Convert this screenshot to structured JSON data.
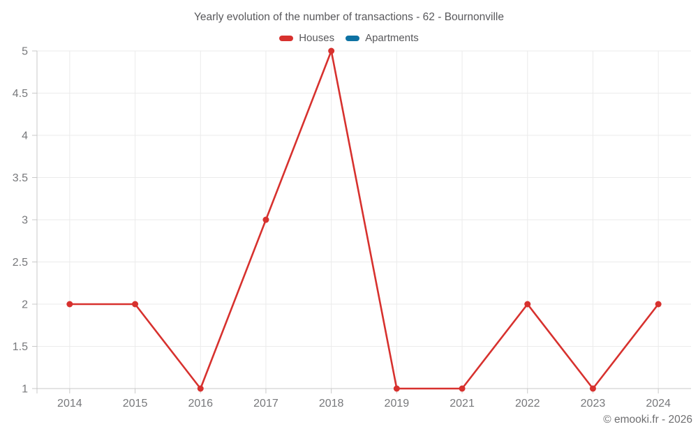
{
  "header": {
    "title": "Yearly evolution of the number of transactions - 62 - Bournonville"
  },
  "legend": {
    "items": [
      {
        "label": "Houses",
        "color": "#d7312e"
      },
      {
        "label": "Apartments",
        "color": "#0e72a3"
      }
    ]
  },
  "footer": {
    "credit": "© emooki.fr - 2026"
  },
  "chart_data": {
    "type": "line",
    "title": "Yearly evolution of the number of transactions - 62 - Bournonville",
    "categories": [
      "2014",
      "2015",
      "2016",
      "2017",
      "2018",
      "2019",
      "2021",
      "2022",
      "2023",
      "2024"
    ],
    "series": [
      {
        "name": "Houses",
        "color": "#d7312e",
        "values": [
          2,
          2,
          1,
          3,
          5,
          1,
          1,
          2,
          1,
          2
        ]
      },
      {
        "name": "Apartments",
        "color": "#0e72a3",
        "values": []
      }
    ],
    "xlabel": "",
    "ylabel": "",
    "ylim": [
      1,
      5
    ],
    "ytick_step": 0.5,
    "yticks": [
      "1",
      "1.5",
      "2",
      "2.5",
      "3",
      "3.5",
      "4",
      "4.5",
      "5"
    ],
    "grid": true,
    "legend_position": "top",
    "colors": {
      "grid": "#ebebeb",
      "axis": "#c9c9c9",
      "tick_label": "#77787b",
      "marker": "#d7312e"
    }
  }
}
